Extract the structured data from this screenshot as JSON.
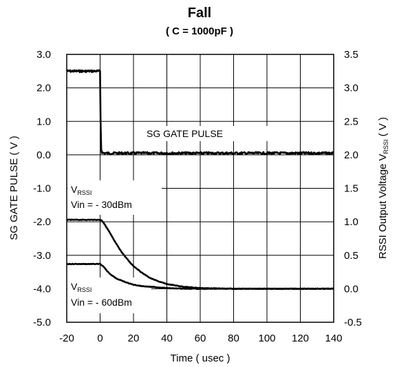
{
  "chart_data": {
    "type": "line",
    "title": "Fall",
    "subtitle": "( C = 1000pF )",
    "xlabel": "Time ( usec )",
    "ylabel_left": "SG GATE PULSE ( V )",
    "ylabel_right_main": "RSSI Output Voltage V",
    "ylabel_right_sub": "RSSI",
    "ylabel_right_end": " ( V )",
    "xlim": [
      -20,
      140
    ],
    "ylim_left": [
      -5.0,
      3.0
    ],
    "ylim_right": [
      -0.5,
      3.5
    ],
    "x_ticks": [
      "-20",
      "0",
      "20",
      "40",
      "60",
      "80",
      "100",
      "120",
      "140"
    ],
    "y_left_ticks": [
      "3.0",
      "2.0",
      "1.0",
      "0.0",
      "-1.0",
      "-2.0",
      "-3.0",
      "-4.0",
      "-5.0"
    ],
    "y_right_ticks": [
      "3.5",
      "3.0",
      "2.5",
      "2.0",
      "1.5",
      "1.0",
      "0.5",
      "0.0",
      "-0.5"
    ],
    "grid": true,
    "series": [
      {
        "name": "SG GATE PULSE",
        "axis": "left",
        "x": [
          -20,
          -15,
          -10,
          -5,
          0,
          0.3,
          0.6,
          1,
          2,
          5,
          10,
          20,
          40,
          60,
          80,
          100,
          120,
          140
        ],
        "y": [
          2.5,
          2.5,
          2.5,
          2.5,
          2.5,
          1.0,
          0.2,
          0.08,
          0.05,
          0.05,
          0.05,
          0.05,
          0.05,
          0.05,
          0.05,
          0.05,
          0.05,
          0.05
        ]
      },
      {
        "name": "Vin = - 30dBm",
        "axis": "right",
        "x": [
          -20,
          -10,
          -5,
          0,
          1,
          2,
          3,
          5,
          8,
          10,
          12,
          15,
          18,
          20,
          25,
          30,
          35,
          40,
          50,
          60,
          80,
          100,
          120,
          140
        ],
        "y": [
          1.03,
          1.03,
          1.03,
          1.03,
          1.02,
          0.99,
          0.95,
          0.87,
          0.74,
          0.66,
          0.58,
          0.48,
          0.39,
          0.34,
          0.24,
          0.16,
          0.11,
          0.07,
          0.03,
          0.01,
          0.0,
          0.0,
          0.0,
          0.0
        ]
      },
      {
        "name": "Vin = - 60dBm",
        "axis": "right",
        "x": [
          -20,
          -10,
          -5,
          0,
          2,
          4,
          6,
          10,
          15,
          20,
          25,
          30,
          40,
          50,
          60,
          80,
          100,
          120,
          140
        ],
        "y": [
          0.37,
          0.37,
          0.37,
          0.37,
          0.33,
          0.27,
          0.22,
          0.15,
          0.1,
          0.06,
          0.04,
          0.03,
          0.01,
          0.0,
          0.0,
          0.0,
          0.0,
          0.0,
          0.0
        ]
      }
    ],
    "annotations": [
      {
        "text": "SG GATE PULSE"
      },
      {
        "text": "V",
        "sub": "RSSI",
        "line2": "Vin = - 30dBm"
      },
      {
        "text": "V",
        "sub": "RSSI",
        "line2": "Vin = - 60dBm"
      }
    ]
  }
}
